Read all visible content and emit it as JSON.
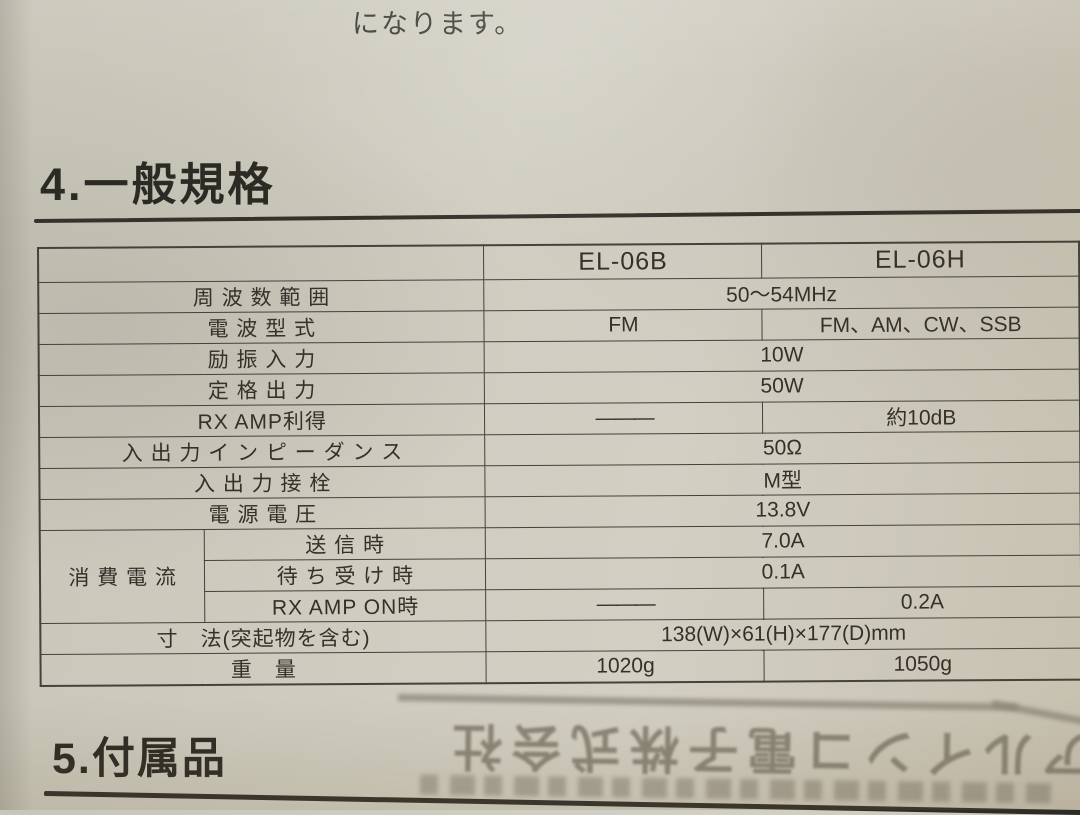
{
  "photo": {
    "top_partial_text": "になります。",
    "section_spec_heading": "4.一般規格",
    "section_accessories_heading": "5.付属品",
    "show_through_text": "アルインコ電子株式会社"
  },
  "spec_table": {
    "header": [
      {
        "t": "",
        "colspan": 2
      },
      {
        "t": "EL-06B"
      },
      {
        "t": "EL-06H"
      }
    ],
    "rows": [
      [
        {
          "t": "周 波 数 範 囲",
          "cls": "label",
          "colspan": 2
        },
        {
          "t": "50〜54MHz",
          "colspan": 2
        }
      ],
      [
        {
          "t": "電 波 型 式",
          "cls": "label",
          "colspan": 2
        },
        {
          "t": "FM"
        },
        {
          "t": "FM、AM、CW、SSB",
          "cls": "clip"
        }
      ],
      [
        {
          "t": "励 振 入 力",
          "cls": "label",
          "colspan": 2
        },
        {
          "t": "10W",
          "colspan": 2
        }
      ],
      [
        {
          "t": "定 格 出 力",
          "cls": "label",
          "colspan": 2
        },
        {
          "t": "50W",
          "colspan": 2
        }
      ],
      [
        {
          "t": "RX AMP利得",
          "cls": "label",
          "colspan": 2
        },
        {
          "t": "———",
          "cls": "dash"
        },
        {
          "t": "約10dB"
        }
      ],
      [
        {
          "t": "入 出 力 イ ン ピ ー ダ ン ス",
          "cls": "label",
          "colspan": 2
        },
        {
          "t": "50Ω",
          "colspan": 2
        }
      ],
      [
        {
          "t": "入 出 力 接 栓",
          "cls": "label",
          "colspan": 2
        },
        {
          "t": "M型",
          "colspan": 2
        }
      ],
      [
        {
          "t": "電 源 電 圧",
          "cls": "label",
          "colspan": 2
        },
        {
          "t": "13.8V",
          "colspan": 2
        }
      ],
      [
        {
          "t": "消 費 電 流",
          "cls": "label group",
          "rowspan": 3
        },
        {
          "t": "送 信 時",
          "cls": "sublabel"
        },
        {
          "t": "7.0A",
          "colspan": 2
        }
      ],
      [
        {
          "t": "待 ち 受 け 時",
          "cls": "sublabel"
        },
        {
          "t": "0.1A",
          "colspan": 2
        }
      ],
      [
        {
          "t": "RX AMP ON時",
          "cls": "sublabel"
        },
        {
          "t": "———",
          "cls": "dash"
        },
        {
          "t": "0.2A"
        }
      ],
      [
        {
          "t": "寸　法(突起物を含む)",
          "cls": "label",
          "colspan": 2
        },
        {
          "t": "138(W)×61(H)×177(D)mm",
          "colspan": 2
        }
      ],
      [
        {
          "t": "重　量",
          "cls": "label",
          "colspan": 2
        },
        {
          "t": "1020g"
        },
        {
          "t": "1050g"
        }
      ]
    ]
  }
}
